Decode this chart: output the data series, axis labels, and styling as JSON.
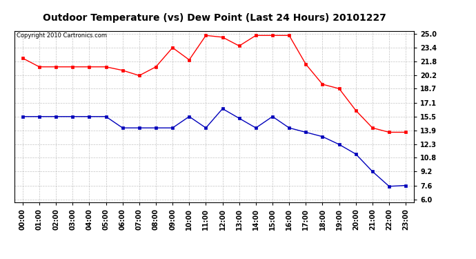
{
  "title": "Outdoor Temperature (vs) Dew Point (Last 24 Hours) 20101227",
  "copyright_text": "Copyright 2010 Cartronics.com",
  "hours": [
    "00:00",
    "01:00",
    "02:00",
    "03:00",
    "04:00",
    "05:00",
    "06:00",
    "07:00",
    "08:00",
    "09:00",
    "10:00",
    "11:00",
    "12:00",
    "13:00",
    "14:00",
    "15:00",
    "16:00",
    "17:00",
    "18:00",
    "19:00",
    "20:00",
    "21:00",
    "22:00",
    "23:00"
  ],
  "temp_red": [
    22.2,
    21.2,
    21.2,
    21.2,
    21.2,
    21.2,
    20.8,
    20.2,
    21.2,
    23.4,
    22.0,
    24.8,
    24.6,
    23.6,
    24.8,
    24.8,
    24.8,
    21.5,
    19.2,
    18.7,
    16.2,
    14.2,
    13.7,
    13.7
  ],
  "dew_blue": [
    15.5,
    15.5,
    15.5,
    15.5,
    15.5,
    15.5,
    14.2,
    14.2,
    14.2,
    14.2,
    15.5,
    14.2,
    16.4,
    15.3,
    14.2,
    15.5,
    14.2,
    13.7,
    13.2,
    12.3,
    11.2,
    9.2,
    7.5,
    7.6
  ],
  "ylim_min": 6.0,
  "ylim_max": 25.0,
  "yticks": [
    6.0,
    7.6,
    9.2,
    10.8,
    12.3,
    13.9,
    15.5,
    17.1,
    18.7,
    20.2,
    21.8,
    23.4,
    25.0
  ],
  "red_color": "#ff0000",
  "blue_color": "#0000bb",
  "bg_color": "#ffffff",
  "grid_color": "#aaaaaa",
  "title_fontsize": 10,
  "tick_fontsize": 7,
  "copyright_fontsize": 6
}
